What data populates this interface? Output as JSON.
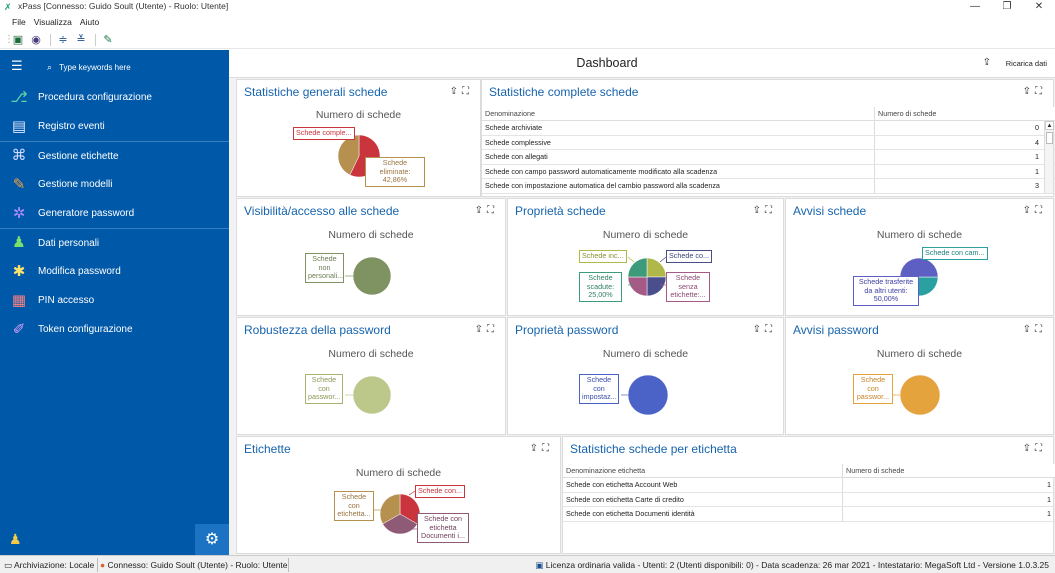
{
  "window": {
    "title": "xPass [Connesso: Guido Soult (Utente) - Ruolo: Utente]",
    "minimize": "—",
    "restore": "❐",
    "close": "✕"
  },
  "menu": [
    "File",
    "Visualizza",
    "Aiuto"
  ],
  "sidebar": {
    "search_placeholder": "Type keywords here",
    "items": [
      {
        "label": "Procedura configurazione",
        "icon": "workflow-icon"
      },
      {
        "label": "Registro eventi",
        "icon": "event-log-icon"
      },
      {
        "label": "Gestione etichette",
        "icon": "tags-icon"
      },
      {
        "label": "Gestione modelli",
        "icon": "templates-icon"
      },
      {
        "label": "Generatore password",
        "icon": "password-generator-icon"
      },
      {
        "label": "Dati personali",
        "icon": "personal-data-icon"
      },
      {
        "label": "Modifica password",
        "icon": "change-password-icon"
      },
      {
        "label": "PIN accesso",
        "icon": "pin-icon"
      },
      {
        "label": "Token configurazione",
        "icon": "token-icon"
      }
    ]
  },
  "dashboard": {
    "title": "Dashboard",
    "reload": "Ricarica dati"
  },
  "panels": {
    "stat_generali": {
      "title": "Statistiche generali schede",
      "chart_title": "Numero di schede",
      "labels": [
        "Schede comple...",
        "Schede\neliminate:\n42,86%"
      ]
    },
    "stat_complete": {
      "title": "Statistiche complete schede",
      "col1": "Denominazione",
      "col2": "Numero di schede",
      "rows": [
        {
          "name": "Schede archiviate",
          "value": "0"
        },
        {
          "name": "Schede complessive",
          "value": "4"
        },
        {
          "name": "Schede con allegati",
          "value": "1"
        },
        {
          "name": "Schede con campo password automaticamente modificato alla scadenza",
          "value": "1"
        },
        {
          "name": "Schede con impostazione automatica del cambio password alla scadenza",
          "value": "3"
        }
      ]
    },
    "visibilita": {
      "title": "Visibilità/accesso alle schede",
      "chart_title": "Numero di schede",
      "labels": [
        "Schede\nnon\npersonali..."
      ]
    },
    "proprieta_schede": {
      "title": "Proprietà schede",
      "chart_title": "Numero di schede",
      "labels": [
        "Schede inc...",
        "Schede co...",
        "Schede\nscadute:\n25,00%",
        "Schede\nsenza\netichette:..."
      ]
    },
    "avvisi_schede": {
      "title": "Avvisi schede",
      "chart_title": "Numero di schede",
      "labels": [
        "Schede con cam...",
        "Schede trasferite\nda altri utenti:\n50,00%"
      ]
    },
    "robustezza": {
      "title": "Robustezza della password",
      "chart_title": "Numero di schede",
      "labels": [
        "Schede\ncon\npasswor..."
      ]
    },
    "proprieta_password": {
      "title": "Proprietà password",
      "chart_title": "Numero di schede",
      "labels": [
        "Schede\ncon\nimpostaz..."
      ]
    },
    "avvisi_password": {
      "title": "Avvisi password",
      "chart_title": "Numero di schede",
      "labels": [
        "Schede\ncon\npasswor..."
      ]
    },
    "etichette": {
      "title": "Etichette",
      "chart_title": "Numero di schede",
      "labels": [
        "Schede\ncon\netichetta...",
        "Schede con...",
        "Schede con\netichetta\nDocumenti i..."
      ]
    },
    "stat_etichetta": {
      "title": "Statistiche schede per etichetta",
      "col1": "Denominazione etichetta",
      "col2": "Numero di schede",
      "rows": [
        {
          "name": "Schede con etichetta Account Web",
          "value": "1"
        },
        {
          "name": "Schede con etichetta Carte di credito",
          "value": "1"
        },
        {
          "name": "Schede con etichetta Documenti identità",
          "value": "1"
        }
      ]
    }
  },
  "chart_data": [
    {
      "type": "pie",
      "title": "Numero di schede",
      "slices": [
        {
          "label": "Schede comple...",
          "value": 57.14,
          "color": "#c9343d"
        },
        {
          "label": "Schede eliminate",
          "value": 42.86,
          "color": "#b6904f"
        }
      ]
    },
    {
      "type": "pie",
      "title": "Numero di schede",
      "slices": [
        {
          "label": "Schede non personali...",
          "value": 100,
          "color": "#7e9262"
        }
      ]
    },
    {
      "type": "pie",
      "title": "Numero di schede",
      "slices": [
        {
          "label": "Schede inc...",
          "value": 25,
          "color": "#b0b84a"
        },
        {
          "label": "Schede co...",
          "value": 25,
          "color": "#4a4e8d"
        },
        {
          "label": "Schede senza etichette:...",
          "value": 25,
          "color": "#a55a86"
        },
        {
          "label": "Schede scadute",
          "value": 25,
          "color": "#3d9a7a"
        }
      ]
    },
    {
      "type": "pie",
      "title": "Numero di schede",
      "slices": [
        {
          "label": "Schede con cam...",
          "value": 50,
          "color": "#2aa0a0"
        },
        {
          "label": "Schede trasferite da altri utenti",
          "value": 50,
          "color": "#5d5fc2"
        }
      ]
    },
    {
      "type": "pie",
      "title": "Numero di schede",
      "slices": [
        {
          "label": "Schede con passwor...",
          "value": 100,
          "color": "#bcc78a"
        }
      ]
    },
    {
      "type": "pie",
      "title": "Numero di schede",
      "slices": [
        {
          "label": "Schede con impostaz...",
          "value": 100,
          "color": "#4b63c6"
        }
      ]
    },
    {
      "type": "pie",
      "title": "Numero di schede",
      "slices": [
        {
          "label": "Schede con passwor...",
          "value": 100,
          "color": "#e5a33e"
        }
      ]
    },
    {
      "type": "pie",
      "title": "Numero di schede",
      "slices": [
        {
          "label": "Schede con...",
          "value": 33.33,
          "color": "#c9343d"
        },
        {
          "label": "Schede con etichetta Documenti i...",
          "value": 33.33,
          "color": "#8e5a76"
        },
        {
          "label": "Schede con etichetta...",
          "value": 33.34,
          "color": "#b6904f"
        }
      ]
    }
  ],
  "statusbar": {
    "archive": "Archiviazione: Locale",
    "connection": "Connesso: Guido Soult (Utente) - Ruolo: Utente",
    "license": "Licenza ordinaria valida - Utenti: 2 (Utenti disponibili: 0) - Data scadenza: 26 mar 2021 - Intestatario: MegaSoft Ltd - Versione 1.0.3.25"
  }
}
